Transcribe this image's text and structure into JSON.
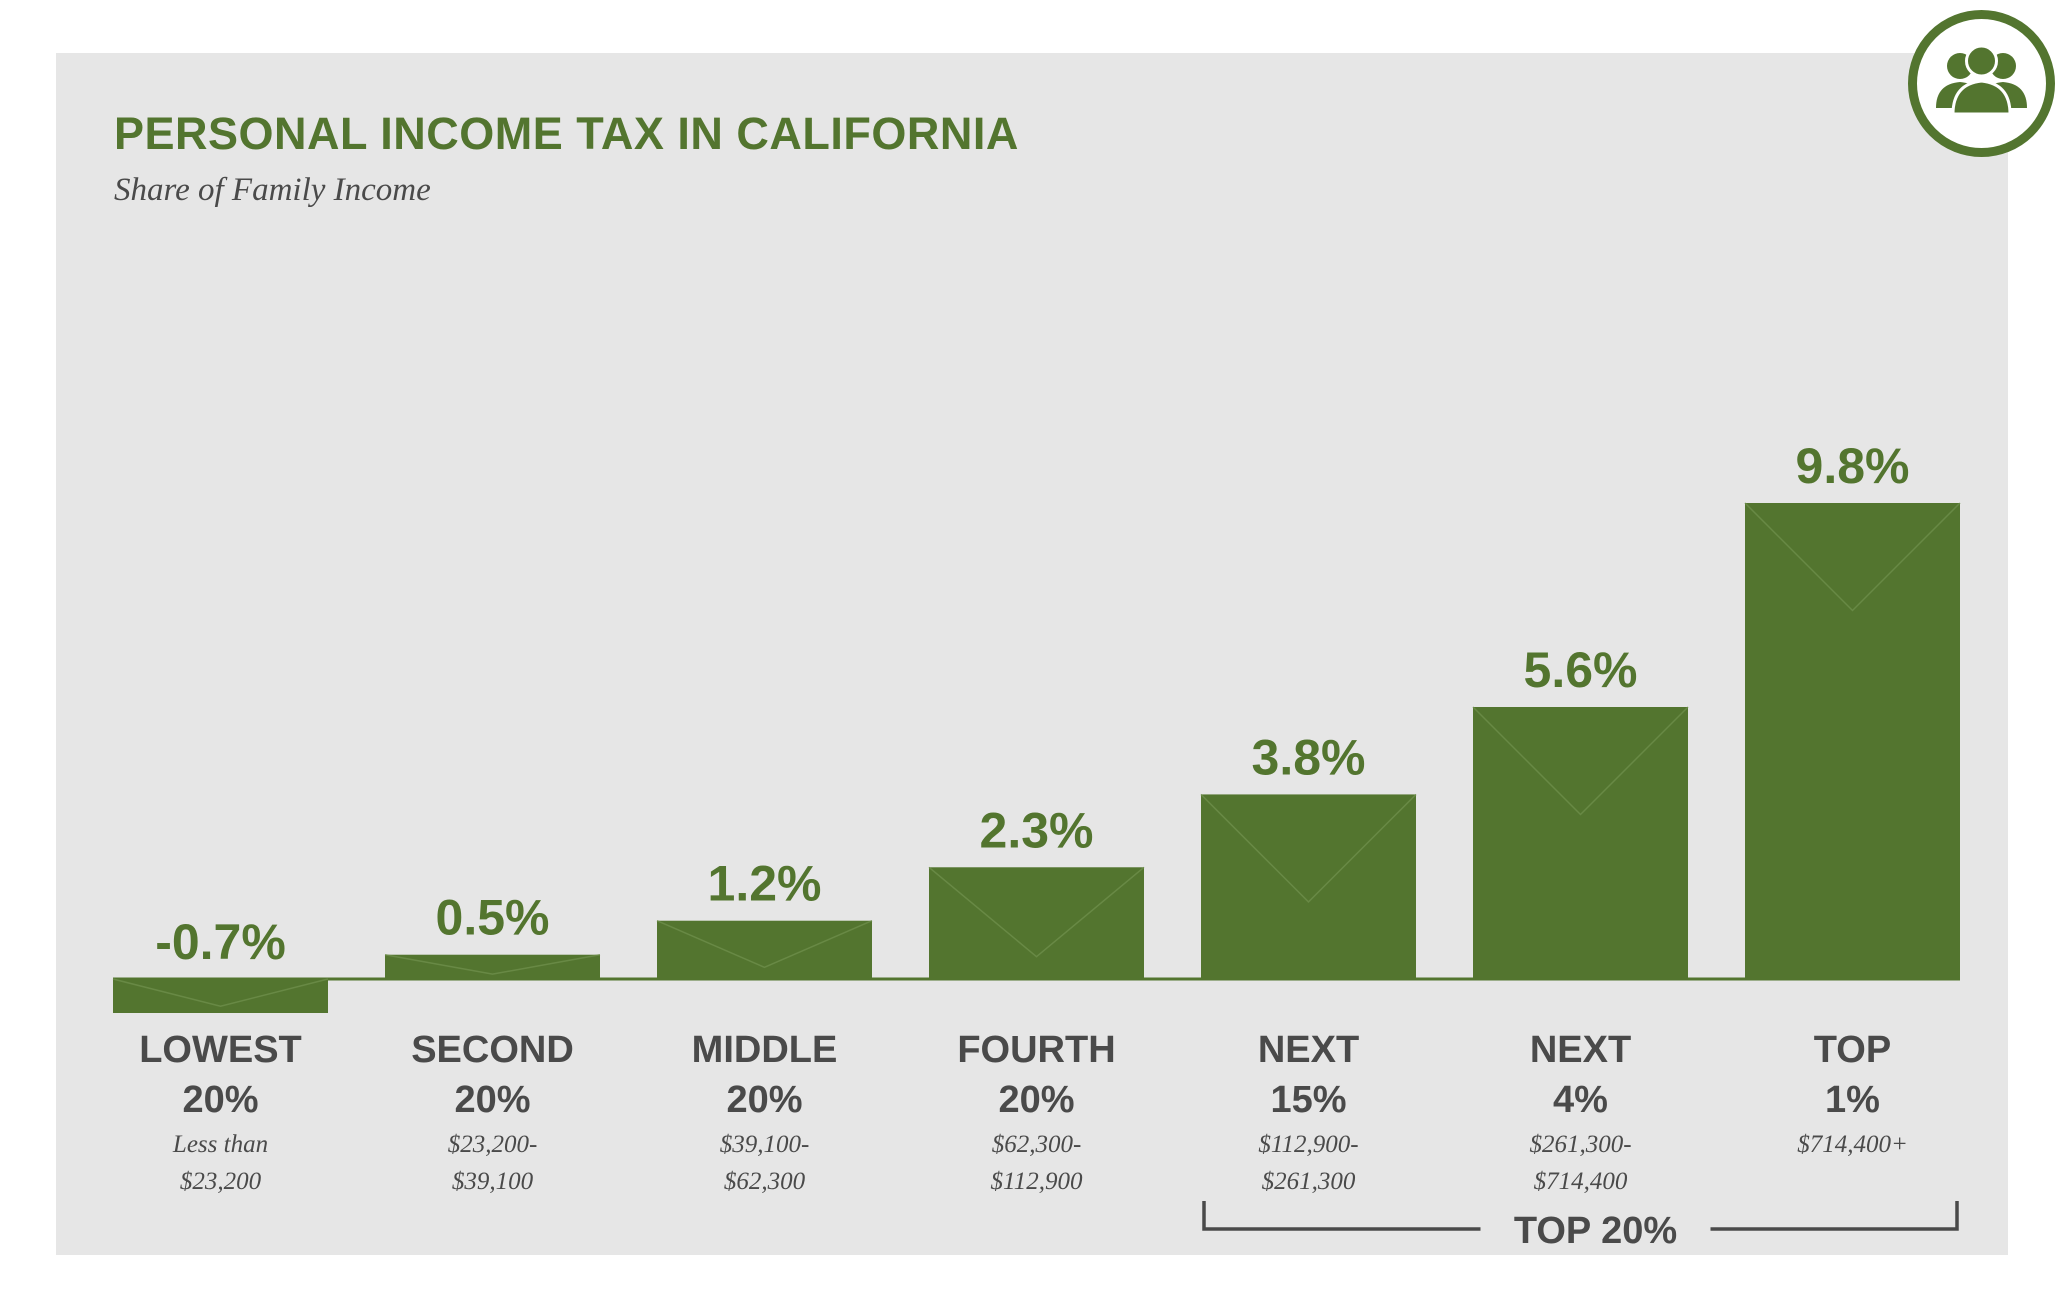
{
  "chart_data": {
    "type": "bar",
    "title": "PERSONAL INCOME TAX IN CALIFORNIA",
    "subtitle": "Share of Family Income",
    "unit": "%",
    "categories": [
      {
        "line1": "LOWEST",
        "line2": "20%",
        "range": [
          "Less than",
          "$23,200"
        ]
      },
      {
        "line1": "SECOND",
        "line2": "20%",
        "range": [
          "$23,200-",
          "$39,100"
        ]
      },
      {
        "line1": "MIDDLE",
        "line2": "20%",
        "range": [
          "$39,100-",
          "$62,300"
        ]
      },
      {
        "line1": "FOURTH",
        "line2": "20%",
        "range": [
          "$62,300-",
          "$112,900"
        ]
      },
      {
        "line1": "NEXT",
        "line2": "15%",
        "range": [
          "$112,900-",
          "$261,300"
        ]
      },
      {
        "line1": "NEXT",
        "line2": "4%",
        "range": [
          "$261,300-",
          "$714,400"
        ]
      },
      {
        "line1": "TOP",
        "line2": "1%",
        "range": [
          "$714,400+"
        ]
      }
    ],
    "values": [
      -0.7,
      0.5,
      1.2,
      2.3,
      3.8,
      5.6,
      9.8
    ],
    "value_labels": [
      "-0.7%",
      "0.5%",
      "1.2%",
      "2.3%",
      "3.8%",
      "5.6%",
      "9.8%"
    ],
    "group_bracket": {
      "label": "TOP 20%",
      "from_index": 4,
      "to_index": 6
    },
    "ylim": [
      -0.7,
      9.8
    ],
    "grid": false,
    "colors": {
      "bar": "#53752f",
      "text": "#4a4a4a",
      "accent": "#53752f",
      "background": "#e6e6e6"
    }
  },
  "header": {
    "title": "PERSONAL INCOME TAX IN CALIFORNIA",
    "subtitle": "Share of Family Income",
    "badge_icon": "people-group-icon"
  }
}
